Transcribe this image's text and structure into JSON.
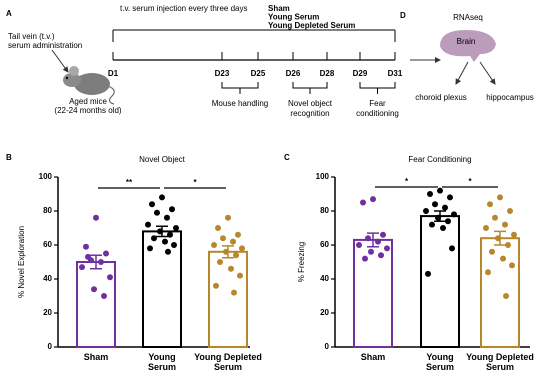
{
  "panel_labels": [
    "A",
    "B",
    "C",
    "D"
  ],
  "panel_a": {
    "injection_label": "t.v. serum injection every three days",
    "legend": [
      {
        "name": "Sham",
        "color": "#7030a0"
      },
      {
        "name": "Young Serum",
        "color": "#000000"
      },
      {
        "name": "Young Depleted Serum",
        "color": "#b8862b"
      }
    ],
    "administration": [
      "Tail vein (t.v.)",
      "serum administration"
    ],
    "mice": [
      "Aged mice",
      "(22-24 months old)"
    ],
    "timeline": [
      "D1",
      "D23",
      "D25",
      "D26",
      "D28",
      "D29",
      "D31"
    ],
    "phases": [
      [
        "Mouse handling"
      ],
      [
        "Novel object",
        "recognition"
      ],
      [
        "Fear",
        "conditioning"
      ]
    ]
  },
  "panel_d": {
    "title": "RNAseq",
    "organ": "Brain",
    "targets": [
      "choroid plexus",
      "hippocampus"
    ]
  },
  "chart_data": [
    {
      "type": "bar",
      "title": "Novel Object",
      "ylabel": "% Novel Exploration",
      "categories": [
        "Sham",
        "Young Serum",
        "Young Depleted Serum"
      ],
      "colors": [
        "#7030a0",
        "#000000",
        "#b8862b"
      ],
      "values": [
        50,
        68,
        56
      ],
      "errors": [
        4,
        3,
        3.5
      ],
      "points": [
        [
          76,
          59,
          55,
          51,
          50,
          47,
          41,
          34,
          30,
          53
        ],
        [
          88,
          84,
          81,
          79,
          76,
          72,
          70,
          68,
          66,
          64,
          62,
          60,
          58,
          56
        ],
        [
          76,
          70,
          66,
          64,
          62,
          60,
          58,
          56,
          54,
          50,
          46,
          42,
          36,
          32
        ]
      ],
      "ylim": [
        0,
        100
      ],
      "yticks": [
        0,
        20,
        40,
        60,
        80,
        100
      ],
      "significance": [
        {
          "label": "**",
          "from": 0,
          "to": 1
        },
        {
          "label": "*",
          "from": 1,
          "to": 2
        }
      ]
    },
    {
      "type": "bar",
      "title": "Fear Conditioning",
      "ylabel": "% Freezing",
      "categories": [
        "Sham",
        "Young Serum",
        "Young Depleted Serum"
      ],
      "colors": [
        "#7030a0",
        "#000000",
        "#b8862b"
      ],
      "values": [
        63,
        77,
        64
      ],
      "errors": [
        4,
        3,
        4
      ],
      "points": [
        [
          87,
          85,
          66,
          64,
          62,
          60,
          58,
          56,
          54,
          52
        ],
        [
          92,
          90,
          88,
          84,
          82,
          80,
          78,
          76,
          74,
          72,
          70,
          58,
          43
        ],
        [
          88,
          84,
          80,
          76,
          72,
          70,
          66,
          64,
          60,
          56,
          52,
          48,
          44,
          30
        ]
      ],
      "ylim": [
        0,
        100
      ],
      "yticks": [
        0,
        20,
        40,
        60,
        80,
        100
      ],
      "significance": [
        {
          "label": "*",
          "from": 0,
          "to": 1
        },
        {
          "label": "*",
          "from": 1,
          "to": 2
        }
      ]
    }
  ]
}
